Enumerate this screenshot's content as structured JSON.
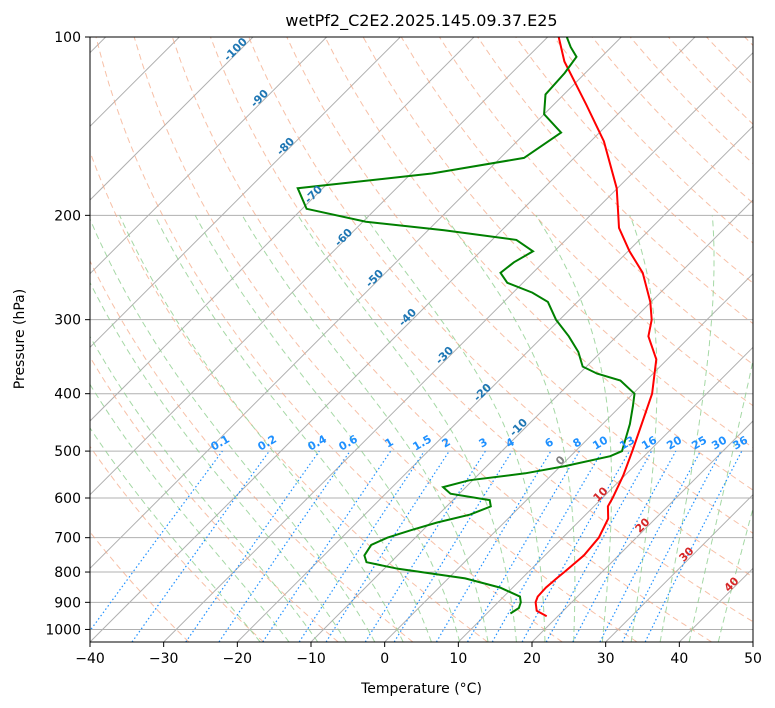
{
  "chart_data": {
    "type": "line",
    "diagram": "skew-T log-P",
    "title": "wetPf2_C2E2.2025.145.09.37.E25",
    "xlabel": "Temperature (°C)",
    "ylabel": "Pressure (hPa)",
    "xlim": [
      -40,
      50
    ],
    "ylim": [
      1050,
      100
    ],
    "y_scale": "log",
    "x_ticks": [
      -40,
      -30,
      -20,
      -10,
      0,
      10,
      20,
      30,
      40,
      50
    ],
    "y_ticks": [
      100,
      200,
      300,
      400,
      500,
      600,
      700,
      800,
      900,
      1000
    ],
    "grid": true,
    "skew_degrees": 45,
    "series": [
      {
        "color": "#ff0000",
        "points": [
          [
            950,
            18.5
          ],
          [
            930,
            16.4
          ],
          [
            900,
            15.1
          ],
          [
            880,
            14.6
          ],
          [
            850,
            14.5
          ],
          [
            820,
            14.7
          ],
          [
            800,
            14.9
          ],
          [
            750,
            15.3
          ],
          [
            700,
            14.9
          ],
          [
            650,
            13.6
          ],
          [
            620,
            11.9
          ],
          [
            600,
            11.4
          ],
          [
            550,
            9.8
          ],
          [
            500,
            7.7
          ],
          [
            450,
            5.3
          ],
          [
            400,
            2.6
          ],
          [
            350,
            -1.5
          ],
          [
            320,
            -5.7
          ],
          [
            300,
            -7.5
          ],
          [
            280,
            -10.1
          ],
          [
            250,
            -15.1
          ],
          [
            230,
            -19.8
          ],
          [
            210,
            -24.4
          ],
          [
            200,
            -26.2
          ],
          [
            180,
            -30.1
          ],
          [
            150,
            -38.2
          ],
          [
            130,
            -45.6
          ],
          [
            110,
            -54.4
          ],
          [
            100,
            -58.5
          ]
        ]
      },
      {
        "color": "#008000",
        "points": [
          [
            940,
            13.2
          ],
          [
            920,
            13.6
          ],
          [
            900,
            13.1
          ],
          [
            880,
            12.2
          ],
          [
            850,
            8.3
          ],
          [
            820,
            2.3
          ],
          [
            790,
            -8.1
          ],
          [
            770,
            -13.3
          ],
          [
            750,
            -14.5
          ],
          [
            720,
            -15.0
          ],
          [
            700,
            -13.8
          ],
          [
            680,
            -11.6
          ],
          [
            660,
            -9.1
          ],
          [
            640,
            -5.7
          ],
          [
            620,
            -4.0
          ],
          [
            605,
            -5.0
          ],
          [
            590,
            -11.2
          ],
          [
            575,
            -13.1
          ],
          [
            560,
            -10.5
          ],
          [
            545,
            -3.8
          ],
          [
            530,
            0.6
          ],
          [
            510,
            5.4
          ],
          [
            500,
            6.3
          ],
          [
            450,
            3.7
          ],
          [
            420,
            1.7
          ],
          [
            400,
            0.2
          ],
          [
            380,
            -3.5
          ],
          [
            370,
            -7.6
          ],
          [
            360,
            -10.5
          ],
          [
            340,
            -13.1
          ],
          [
            320,
            -16.5
          ],
          [
            300,
            -20.5
          ],
          [
            280,
            -24.0
          ],
          [
            270,
            -27.4
          ],
          [
            260,
            -32.1
          ],
          [
            250,
            -34.4
          ],
          [
            240,
            -34.0
          ],
          [
            230,
            -32.9
          ],
          [
            220,
            -36.7
          ],
          [
            212,
            -47.8
          ],
          [
            205,
            -59.6
          ],
          [
            195,
            -69.4
          ],
          [
            180,
            -73.4
          ],
          [
            170,
            -57.2
          ],
          [
            160,
            -46.8
          ],
          [
            145,
            -45.2
          ],
          [
            135,
            -50.0
          ],
          [
            125,
            -52.5
          ],
          [
            115,
            -52.8
          ],
          [
            108,
            -53.4
          ],
          [
            104,
            -55.5
          ],
          [
            100,
            -57.4
          ]
        ]
      }
    ],
    "annotations": {
      "dry_adiabats": {
        "color": "#1f77b4",
        "labels": [
          "-100",
          "-90",
          "-80",
          "-70",
          "-60",
          "-50",
          "-40",
          "-30",
          "-20",
          "-10"
        ]
      },
      "moist_adiabats": {
        "color": "#d62728",
        "labels": [
          "0",
          "10",
          "20",
          "30",
          "40"
        ]
      },
      "mixing_ratio": {
        "color": "#1e90ff",
        "pressure": 500,
        "labels": [
          "0.1",
          "0.2",
          "0.4",
          "0.6",
          "1",
          "1.5",
          "2",
          "3",
          "4",
          "6",
          "8",
          "10",
          "13",
          "16",
          "20",
          "25",
          "30",
          "36"
        ]
      }
    },
    "colors": {
      "grid": "#b0b0b0",
      "dry_adiabat_lines": "#f4a582",
      "moist_adiabat_lines": "#8fce8f",
      "mixing_ratio_lines": "#1e90ff"
    }
  }
}
